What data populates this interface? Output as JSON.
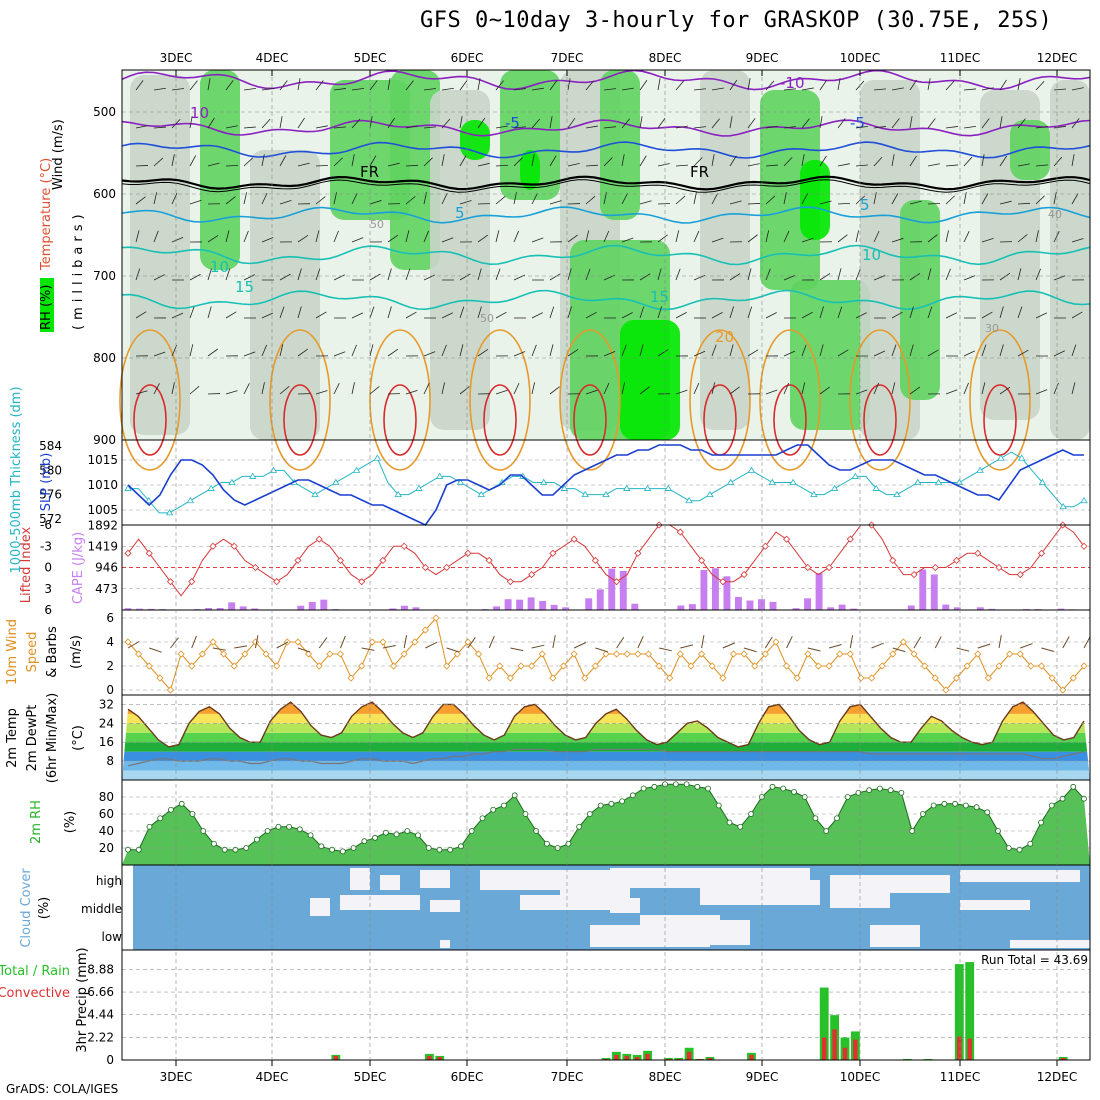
{
  "title": "GFS 0~10day 3-hourly for GRASKOP (30.75E, 25S)",
  "credit": "GrADS: COLA/IGES",
  "dates": [
    "3DEC",
    "4DEC",
    "5DEC",
    "6DEC",
    "7DEC",
    "8DEC",
    "9DEC",
    "10DEC",
    "11DEC",
    "12DEC"
  ],
  "colors": {
    "rh_light": "#eaf3ea",
    "rh_mid": "#c9d5c9",
    "rh_dark": "#a9b8a9",
    "rh_green": "#5fd35f",
    "rh_bright": "#00e800",
    "purple": "#8a20c0",
    "blue": "#1f4fd8",
    "cyan": "#19a0d8",
    "teal": "#17c0b5",
    "freeze": "#000000",
    "orange": "#e69a2b",
    "red": "#d92b2b",
    "slp": "#1a3fd0",
    "thick": "#22b5c5",
    "lifted": "#d53a3a",
    "cape": "#c77ff0",
    "wind": "#e09020",
    "barb": "#6b4a2a",
    "rh2m": "#28b428",
    "cloud": "#6aa8d8",
    "cloud_light": "#f4f4f8",
    "precip_total": "#28c028",
    "precip_conv": "#e03030"
  },
  "panels": {
    "upper": {
      "ylabel": "(millibars)",
      "ylabel_wind": "Wind (m/s)",
      "ylabel_temp": "Temperature (°C)",
      "ylabel_rh": "RH (%)",
      "yticks": [
        "500",
        "600",
        "700",
        "800",
        "900"
      ],
      "contour_labels": [
        "10",
        "-10",
        "-5",
        "-5",
        "FR",
        "FR",
        "5",
        "5",
        "10",
        "10",
        "15",
        "15",
        "20",
        "50",
        "50",
        "30",
        "40"
      ]
    },
    "slp": {
      "ylabel_left": "1000-500mb Thickness (dm)",
      "ylabel_right": "SLP (mb)",
      "ticks_left": [
        "584",
        "580",
        "576",
        "572"
      ],
      "ticks_right": [
        "1015",
        "1010",
        "1005"
      ]
    },
    "cape": {
      "ylabel_left": "Lifted Index",
      "ylabel_right": "CAPE (J/kg)",
      "ticks_left": [
        "-6",
        "-3",
        "0",
        "3",
        "6"
      ],
      "ticks_right": [
        "1892",
        "1419",
        "946",
        "473"
      ]
    },
    "wind": {
      "ylabel1": "10m Wind",
      "ylabel2": "Speed",
      "ylabel3": "& Barbs",
      "unit": "(m/s)",
      "ticks": [
        "6",
        "4",
        "2",
        "0"
      ]
    },
    "temp": {
      "ylabel1": "2m Temp",
      "ylabel2": "2m DewPt",
      "ylabel3": "(6hr Min/Max)",
      "unit": "(°C)",
      "ticks": [
        "32",
        "24",
        "16",
        "8"
      ]
    },
    "rh": {
      "ylabel": "2m RH",
      "unit": "(%)",
      "ticks": [
        "80",
        "60",
        "40",
        "20"
      ]
    },
    "cloud": {
      "ylabel": "Cloud Cover",
      "unit": "(%)",
      "levels": [
        "high",
        "middle",
        "low"
      ]
    },
    "precip": {
      "ylabel1": "Total / Rain",
      "ylabel2": "Convective",
      "ylabel3": "3hr Precip (mm)",
      "ticks": [
        "8.88",
        "6.66",
        "4.44",
        "2.22",
        "0"
      ],
      "run_total": "Run Total = 43.69"
    }
  },
  "chart_data": [
    {
      "type": "line",
      "name": "2m temp",
      "x_unit": "3-hourly steps from 2DEC 12Z",
      "temp": [
        30,
        27,
        22,
        17,
        14,
        15,
        24,
        29,
        31,
        28,
        22,
        18,
        16,
        16,
        25,
        30,
        33,
        29,
        23,
        19,
        18,
        20,
        27,
        31,
        33,
        29,
        24,
        20,
        18,
        20,
        27,
        32,
        32,
        28,
        23,
        19,
        17,
        19,
        27,
        31,
        32,
        28,
        23,
        19,
        17,
        18,
        24,
        28,
        30,
        26,
        21,
        17,
        15,
        16,
        20,
        24,
        25,
        22,
        18,
        16,
        14,
        15,
        24,
        31,
        32,
        27,
        21,
        17,
        15,
        16,
        25,
        31,
        32,
        27,
        22,
        18,
        16,
        16,
        22,
        27,
        25,
        21,
        18,
        16,
        15,
        16,
        25,
        31,
        33,
        29,
        24,
        19,
        17,
        18,
        25
      ],
      "dewpt": [
        6,
        7,
        8,
        9,
        9,
        8,
        8,
        8,
        9,
        9,
        8,
        8,
        7,
        7,
        8,
        9,
        9,
        8,
        8,
        7,
        7,
        7,
        8,
        9,
        9,
        8,
        8,
        8,
        7,
        8,
        9,
        9,
        10,
        10,
        11,
        11,
        12,
        12,
        13,
        13,
        13,
        13,
        12,
        12,
        12,
        12,
        13,
        13,
        13,
        13,
        13,
        13,
        13,
        12,
        12,
        12,
        12,
        12,
        12,
        12,
        12,
        12,
        12,
        12,
        12,
        12,
        12,
        12,
        12,
        12,
        12,
        12,
        12,
        11,
        11,
        11,
        11,
        11,
        11,
        11,
        11,
        11,
        11,
        11,
        11,
        11,
        11,
        11,
        11,
        10,
        9,
        9,
        10,
        11,
        12
      ]
    },
    {
      "type": "line",
      "name": "2m RH",
      "y_unit": "%",
      "values": [
        18,
        18,
        45,
        55,
        65,
        72,
        60,
        40,
        25,
        18,
        18,
        20,
        30,
        40,
        45,
        45,
        42,
        35,
        22,
        18,
        16,
        20,
        28,
        32,
        38,
        36,
        40,
        35,
        20,
        18,
        18,
        22,
        40,
        55,
        65,
        70,
        82,
        60,
        40,
        25,
        20,
        25,
        45,
        60,
        70,
        72,
        75,
        82,
        90,
        92,
        95,
        95,
        95,
        92,
        90,
        70,
        50,
        45,
        60,
        80,
        92,
        90,
        86,
        80,
        55,
        40,
        55,
        80,
        85,
        88,
        90,
        88,
        85,
        40,
        60,
        70,
        72,
        72,
        70,
        68,
        62,
        40,
        20,
        18,
        25,
        50,
        70,
        78,
        92,
        78
      ]
    },
    {
      "type": "bar",
      "name": "CAPE",
      "y_unit": "J/kg",
      "values": [
        40,
        30,
        25,
        20,
        0,
        0,
        20,
        45,
        45,
        170,
        80,
        35,
        0,
        0,
        0,
        95,
        180,
        230,
        20,
        0,
        0,
        0,
        0,
        35,
        95,
        60,
        10,
        0,
        0,
        0,
        0,
        20,
        80,
        240,
        230,
        280,
        200,
        115,
        60,
        0,
        260,
        460,
        920,
        870,
        140,
        0,
        0,
        0,
        100,
        130,
        890,
        930,
        750,
        290,
        210,
        240,
        180,
        0,
        40,
        260,
        820,
        60,
        120,
        30,
        0,
        0,
        0,
        0,
        100,
        900,
        790,
        120,
        60,
        0,
        60,
        25,
        0,
        0,
        20,
        20,
        0,
        30,
        15,
        0
      ]
    },
    {
      "type": "bar",
      "name": "3hr precip",
      "y_unit": "mm",
      "total": [
        0,
        0,
        0,
        0,
        0,
        0,
        0,
        0,
        0,
        0,
        0,
        0,
        0,
        0,
        0,
        0,
        0,
        0,
        0,
        0,
        0.5,
        0,
        0,
        0,
        0,
        0,
        0,
        0,
        0,
        0.6,
        0.4,
        0,
        0,
        0,
        0,
        0,
        0,
        0,
        0,
        0,
        0,
        0,
        0,
        0,
        0,
        0,
        0.2,
        0.8,
        0.6,
        0.5,
        0.9,
        0,
        0.2,
        0.2,
        1.2,
        0.1,
        0.3,
        0,
        0,
        0,
        0.7,
        0,
        0,
        0,
        0,
        0,
        0,
        7.1,
        4.4,
        2.2,
        2.8,
        0,
        0,
        0,
        0,
        0.1,
        0,
        0.1,
        0,
        0,
        9.4,
        9.6,
        0,
        0,
        0,
        0,
        0,
        0,
        0,
        0,
        0.3,
        0,
        0
      ],
      "convective": [
        0,
        0,
        0,
        0,
        0,
        0,
        0,
        0,
        0,
        0,
        0,
        0,
        0,
        0,
        0,
        0,
        0,
        0,
        0,
        0,
        0.4,
        0,
        0,
        0,
        0,
        0,
        0,
        0,
        0,
        0.4,
        0.3,
        0,
        0,
        0,
        0,
        0,
        0,
        0,
        0,
        0,
        0,
        0,
        0,
        0,
        0,
        0,
        0.1,
        0.5,
        0.4,
        0.3,
        0.6,
        0,
        0.1,
        0.1,
        0.8,
        0.1,
        0.2,
        0,
        0,
        0,
        0.5,
        0,
        0,
        0,
        0,
        0,
        0,
        2.2,
        3.0,
        1.2,
        2.0,
        0,
        0,
        0,
        0,
        0,
        0,
        0,
        0,
        0,
        2.3,
        2.1,
        0,
        0,
        0,
        0,
        0,
        0,
        0,
        0,
        0.2,
        0,
        0
      ]
    },
    {
      "type": "line",
      "name": "SLP & thickness",
      "slp": [
        1010,
        1008,
        1006,
        1008,
        1012,
        1015,
        1015,
        1014,
        1012,
        1009,
        1007,
        1006,
        1007,
        1008,
        1009,
        1010,
        1011,
        1011,
        1010,
        1009,
        1008,
        1008,
        1007,
        1006,
        1006,
        1005,
        1004,
        1003,
        1002,
        1005,
        1010,
        1011,
        1011,
        1010,
        1009,
        1010,
        1012,
        1012,
        1010,
        1008,
        1008,
        1010,
        1012,
        1013,
        1014,
        1015,
        1016,
        1016,
        1017,
        1017,
        1018,
        1018,
        1018,
        1017,
        1017,
        1016,
        1016,
        1016,
        1016,
        1016,
        1016,
        1016,
        1017,
        1018,
        1018,
        1016,
        1014,
        1013,
        1013,
        1014,
        1015,
        1015,
        1015,
        1014,
        1013,
        1012,
        1012,
        1011,
        1010,
        1009,
        1008,
        1008,
        1007,
        1010,
        1013,
        1014,
        1015,
        1016,
        1017,
        1016,
        1016
      ],
      "thickness": [
        577,
        577,
        575,
        573,
        573,
        574,
        575,
        576,
        577,
        578,
        578,
        579,
        579,
        579,
        580,
        580,
        578,
        577,
        576,
        577,
        578,
        579,
        580,
        581,
        582,
        578,
        576,
        576,
        577,
        578,
        579,
        579,
        578,
        577,
        576,
        577,
        578,
        579,
        579,
        578,
        578,
        578,
        577,
        577,
        576,
        576,
        576,
        577,
        577,
        577,
        577,
        577,
        577,
        576,
        575,
        575,
        576,
        577,
        578,
        579,
        580,
        579,
        578,
        578,
        578,
        577,
        576,
        576,
        577,
        578,
        579,
        579,
        577,
        576,
        576,
        577,
        578,
        578,
        578,
        578,
        578,
        579,
        580,
        581,
        582,
        583,
        582,
        580,
        578,
        576,
        574,
        574,
        575
      ]
    },
    {
      "type": "line",
      "name": "Lifted index",
      "values": [
        -2,
        -4,
        -2,
        0,
        2,
        4,
        2,
        -1,
        -3,
        -4,
        -3,
        -1,
        0,
        1,
        2,
        1,
        -1,
        -3,
        -4,
        -3,
        -1,
        1,
        2,
        1,
        -1,
        -3,
        -3,
        -2,
        0,
        1,
        0,
        -1,
        -2,
        -2,
        -1,
        1,
        2,
        2,
        1,
        0,
        -2,
        -3,
        -4,
        -3,
        -1,
        1,
        2,
        1,
        -2,
        -4,
        -6,
        -6,
        -5,
        -3,
        -1,
        1,
        2,
        2,
        1,
        -1,
        -3,
        -5,
        -4,
        -2,
        0,
        1,
        0,
        -2,
        -4,
        -6,
        -6,
        -4,
        -1,
        1,
        1,
        0,
        0,
        0,
        -1,
        -2,
        -2,
        -1,
        0,
        1,
        1,
        0,
        -2,
        -4,
        -6,
        -5,
        -3
      ]
    },
    {
      "type": "line",
      "name": "10m wind speed",
      "y_unit": "m/s",
      "values": [
        4,
        3,
        2,
        1,
        0,
        3,
        2,
        3,
        4,
        3,
        2,
        3,
        4,
        3,
        2,
        4,
        4,
        3,
        2,
        3,
        3,
        1,
        2,
        4,
        4,
        2,
        3,
        4,
        5,
        6,
        2,
        3,
        4,
        3,
        1,
        2,
        1,
        2,
        2,
        3,
        1,
        2,
        3,
        1,
        2,
        3,
        3,
        3,
        3,
        3,
        2,
        1,
        3,
        2,
        3,
        2,
        1,
        3,
        3,
        2,
        3,
        4,
        2,
        1,
        3,
        2,
        2,
        3,
        3,
        1,
        1,
        2,
        3,
        4,
        3,
        2,
        1,
        0,
        1,
        2,
        3,
        1,
        2,
        3,
        3,
        2,
        2,
        1,
        0,
        1,
        2
      ]
    }
  ]
}
